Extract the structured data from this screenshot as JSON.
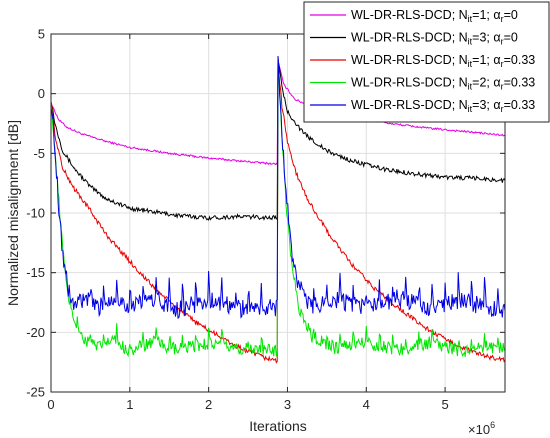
{
  "chart_data": {
    "type": "line",
    "title": "",
    "xlabel": "Iterations",
    "ylabel": "Normalized misalignment [dB]",
    "x_exponent_label": "×10",
    "x_exponent_power": "6",
    "xlim": [
      0,
      5.76
    ],
    "ylim": [
      -25,
      5
    ],
    "xticks": [
      0,
      1,
      2,
      3,
      4,
      5
    ],
    "yticks": [
      5,
      0,
      -5,
      -10,
      -15,
      -20,
      -25
    ],
    "grid": true,
    "legend_placement": "top-right",
    "change_point": 2.88,
    "series": [
      {
        "label_main": "WL-DR-RLS-DCD; N",
        "label_sub": "it",
        "label_mid": "=1; α",
        "label_sub2": "r",
        "label_end": "=0",
        "color": "#e600e6",
        "points": [
          [
            0,
            -0.8
          ],
          [
            0.1,
            -2.2
          ],
          [
            0.2,
            -2.8
          ],
          [
            0.4,
            -3.4
          ],
          [
            0.7,
            -4.0
          ],
          [
            1.0,
            -4.5
          ],
          [
            1.5,
            -5.0
          ],
          [
            2.0,
            -5.4
          ],
          [
            2.5,
            -5.7
          ],
          [
            2.87,
            -5.9
          ],
          [
            2.88,
            2.8
          ],
          [
            2.95,
            0.8
          ],
          [
            3.1,
            -0.5
          ],
          [
            3.4,
            -1.3
          ],
          [
            3.8,
            -1.9
          ],
          [
            4.3,
            -2.5
          ],
          [
            4.8,
            -2.9
          ],
          [
            5.3,
            -3.2
          ],
          [
            5.76,
            -3.5
          ]
        ]
      },
      {
        "label_main": "WL-DR-RLS-DCD; N",
        "label_sub": "it",
        "label_mid": "=3; α",
        "label_sub2": "r",
        "label_end": "=0",
        "color": "#000000",
        "points": [
          [
            0,
            -0.5
          ],
          [
            0.05,
            -2.5
          ],
          [
            0.15,
            -4.8
          ],
          [
            0.3,
            -6.3
          ],
          [
            0.5,
            -7.8
          ],
          [
            0.7,
            -8.8
          ],
          [
            1.0,
            -9.6
          ],
          [
            1.3,
            -9.9
          ],
          [
            1.6,
            -10.2
          ],
          [
            2.0,
            -10.4
          ],
          [
            2.4,
            -10.3
          ],
          [
            2.87,
            -10.4
          ],
          [
            2.88,
            3.0
          ],
          [
            2.93,
            0.5
          ],
          [
            3.0,
            -1.5
          ],
          [
            3.2,
            -3.3
          ],
          [
            3.5,
            -4.8
          ],
          [
            3.8,
            -5.6
          ],
          [
            4.2,
            -6.3
          ],
          [
            4.6,
            -6.7
          ],
          [
            5.0,
            -7.0
          ],
          [
            5.4,
            -7.1
          ],
          [
            5.76,
            -7.3
          ]
        ]
      },
      {
        "label_main": "WL-DR-RLS-DCD; N",
        "label_sub": "it",
        "label_mid": "=1; α",
        "label_sub2": "r",
        "label_end": "=0.33",
        "color": "#e60000",
        "points": [
          [
            0,
            -0.5
          ],
          [
            0.05,
            -3.5
          ],
          [
            0.15,
            -6.3
          ],
          [
            0.3,
            -8.0
          ],
          [
            0.5,
            -9.8
          ],
          [
            0.7,
            -11.8
          ],
          [
            0.9,
            -13.3
          ],
          [
            1.1,
            -14.8
          ],
          [
            1.3,
            -16.2
          ],
          [
            1.5,
            -17.4
          ],
          [
            1.7,
            -18.5
          ],
          [
            1.9,
            -19.4
          ],
          [
            2.1,
            -20.2
          ],
          [
            2.3,
            -21.0
          ],
          [
            2.5,
            -21.6
          ],
          [
            2.7,
            -22.1
          ],
          [
            2.87,
            -22.4
          ],
          [
            2.88,
            2.5
          ],
          [
            2.93,
            -1.0
          ],
          [
            3.0,
            -4.0
          ],
          [
            3.1,
            -6.5
          ],
          [
            3.25,
            -8.8
          ],
          [
            3.5,
            -11.5
          ],
          [
            3.8,
            -14.2
          ],
          [
            4.1,
            -16.3
          ],
          [
            4.4,
            -17.9
          ],
          [
            4.7,
            -19.4
          ],
          [
            5.0,
            -20.6
          ],
          [
            5.3,
            -21.5
          ],
          [
            5.5,
            -22.0
          ],
          [
            5.76,
            -22.3
          ]
        ]
      },
      {
        "label_main": "WL-DR-RLS-DCD; N",
        "label_sub": "it",
        "label_mid": "=2; α",
        "label_sub2": "r",
        "label_end": "=0.33",
        "color": "#00e600",
        "points": [
          [
            0,
            -0.5
          ],
          [
            0.05,
            -5.0
          ],
          [
            0.1,
            -9.0
          ],
          [
            0.15,
            -13.0
          ],
          [
            0.2,
            -16.5
          ],
          [
            0.3,
            -19.0
          ],
          [
            0.4,
            -20.5
          ],
          [
            0.6,
            -21.3
          ],
          [
            0.8,
            -20.6
          ],
          [
            1.0,
            -21.6
          ],
          [
            1.3,
            -20.8
          ],
          [
            1.6,
            -21.5
          ],
          [
            2.0,
            -20.9
          ],
          [
            2.4,
            -21.4
          ],
          [
            2.87,
            -21.5
          ],
          [
            2.88,
            2.6
          ],
          [
            2.92,
            -2.0
          ],
          [
            2.97,
            -8.0
          ],
          [
            3.05,
            -14.0
          ],
          [
            3.15,
            -18.0
          ],
          [
            3.3,
            -20.3
          ],
          [
            3.6,
            -21.3
          ],
          [
            4.0,
            -20.8
          ],
          [
            4.4,
            -21.5
          ],
          [
            4.8,
            -20.9
          ],
          [
            5.2,
            -21.6
          ],
          [
            5.5,
            -21.2
          ],
          [
            5.76,
            -21.3
          ]
        ]
      },
      {
        "label_main": "WL-DR-RLS-DCD; N",
        "label_sub": "it",
        "label_mid": "=3; α",
        "label_sub2": "r",
        "label_end": "=0.33",
        "color": "#0000e6",
        "points": [
          [
            0,
            -0.5
          ],
          [
            0.05,
            -4.5
          ],
          [
            0.1,
            -9.5
          ],
          [
            0.15,
            -13.5
          ],
          [
            0.22,
            -16.5
          ],
          [
            0.3,
            -17.8
          ],
          [
            0.45,
            -17.2
          ],
          [
            0.6,
            -18.0
          ],
          [
            0.8,
            -17.0
          ],
          [
            1.0,
            -17.9
          ],
          [
            1.3,
            -17.2
          ],
          [
            1.6,
            -18.1
          ],
          [
            2.0,
            -17.3
          ],
          [
            2.4,
            -18.0
          ],
          [
            2.87,
            -17.9
          ],
          [
            2.88,
            2.9
          ],
          [
            2.92,
            -2.0
          ],
          [
            2.97,
            -7.5
          ],
          [
            3.05,
            -13.0
          ],
          [
            3.15,
            -16.5
          ],
          [
            3.3,
            -17.9
          ],
          [
            3.6,
            -17.2
          ],
          [
            4.0,
            -18.0
          ],
          [
            4.4,
            -17.1
          ],
          [
            4.8,
            -18.1
          ],
          [
            5.2,
            -17.3
          ],
          [
            5.5,
            -17.9
          ],
          [
            5.76,
            -18.2
          ]
        ]
      }
    ]
  }
}
